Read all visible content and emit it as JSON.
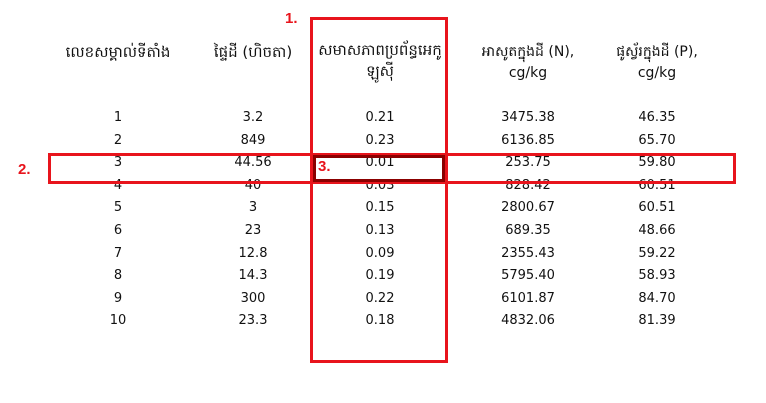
{
  "table": {
    "columns": [
      "លេខសម្គាល់ទីតាំង",
      "ផ្ទៃដី (ហិចតា)",
      "សមាសភាពប្រព័ន្ធអេកូឡូស៊ី",
      "អាសូតក្នុងដី (N),\ncg/kg",
      "ផូស្វ័រក្នុងដី (P),\ncg/kg"
    ],
    "rows": [
      [
        "1",
        "3.2",
        "0.21",
        "3475.38",
        "46.35"
      ],
      [
        "2",
        "849",
        "0.23",
        "6136.85",
        "65.70"
      ],
      [
        "3",
        "44.56",
        "0.01",
        "253.75",
        "59.80"
      ],
      [
        "4",
        "40",
        "0.03",
        "828.42",
        "60.51"
      ],
      [
        "5",
        "3",
        "0.15",
        "2800.67",
        "60.51"
      ],
      [
        "6",
        "23",
        "0.13",
        "689.35",
        "48.66"
      ],
      [
        "7",
        "12.8",
        "0.09",
        "2355.43",
        "59.22"
      ],
      [
        "8",
        "14.3",
        "0.19",
        "5795.40",
        "58.93"
      ],
      [
        "9",
        "300",
        "0.22",
        "6101.87",
        "84.70"
      ],
      [
        "10",
        "23.3",
        "0.18",
        "4832.06",
        "81.39"
      ]
    ]
  },
  "annotations": {
    "column_marker": "1.",
    "row_marker": "2.",
    "cell_marker": "3."
  },
  "colors": {
    "highlight_red": "#e8141c",
    "cell_dark_red": "#8b0000"
  }
}
